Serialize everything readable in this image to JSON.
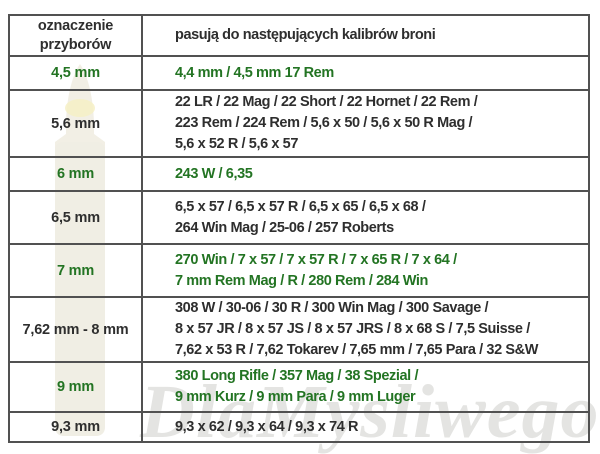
{
  "table": {
    "header": {
      "designation": "oznaczenie przyborów",
      "calibers": "pasują do następujących kalibrów broni"
    },
    "rows": [
      {
        "designation": "4,5 mm",
        "style": "green",
        "lines": [
          "4,4 mm / 4,5 mm 17 Rem"
        ]
      },
      {
        "designation": "5,6 mm",
        "style": "dark",
        "lines": [
          "22 LR / 22 Mag / 22 Short / 22 Hornet / 22 Rem /",
          "223 Rem / 224 Rem / 5,6 x 50 / 5,6 x 50 R Mag /",
          "5,6 x 52 R / 5,6 x 57"
        ]
      },
      {
        "designation": "6 mm",
        "style": "green",
        "lines": [
          "243 W / 6,35"
        ]
      },
      {
        "designation": "6,5 mm",
        "style": "dark",
        "lines": [
          "6,5 x 57 / 6,5 x 57 R / 6,5 x 65 / 6,5 x 68 /",
          "264 Win Mag / 25-06 / 257 Roberts"
        ]
      },
      {
        "designation": "7 mm",
        "style": "green",
        "lines": [
          "270 Win / 7 x 57 / 7 x 57 R / 7 x 65 R / 7 x 64 /",
          "7 mm Rem Mag / R / 280 Rem / 284 Win"
        ]
      },
      {
        "designation": "7,62 mm - 8 mm",
        "style": "dark",
        "lines": [
          "308 W / 30-06 / 30 R / 300 Win Mag / 300 Savage /",
          "8 x 57 JR / 8 x 57 JS / 8 x 57 JRS / 8 x 68 S / 7,5 Suisse /",
          "7,62 x 53 R / 7,62 Tokarev / 7,65 mm / 7,65 Para / 32 S&W"
        ]
      },
      {
        "designation": "9 mm",
        "style": "green",
        "lines": [
          "380 Long Rifle / 357 Mag / 38 Spezial /",
          "9 mm Kurz / 9 mm Para / 9 mm Luger"
        ]
      },
      {
        "designation": "9,3 mm",
        "style": "dark",
        "lines": [
          "9,3 x 62 / 9,3 x 64 / 9,3 x 74 R"
        ]
      }
    ]
  },
  "watermark": {
    "text": "DlaMysliwego",
    "icon": "rifle-cartridge-silhouette"
  },
  "colors": {
    "green": "#237423",
    "dark": "#2e2e2e",
    "border": "#515151",
    "bullet_fill": "#f2efe5",
    "watermark_gray": "#e4e4e2"
  }
}
